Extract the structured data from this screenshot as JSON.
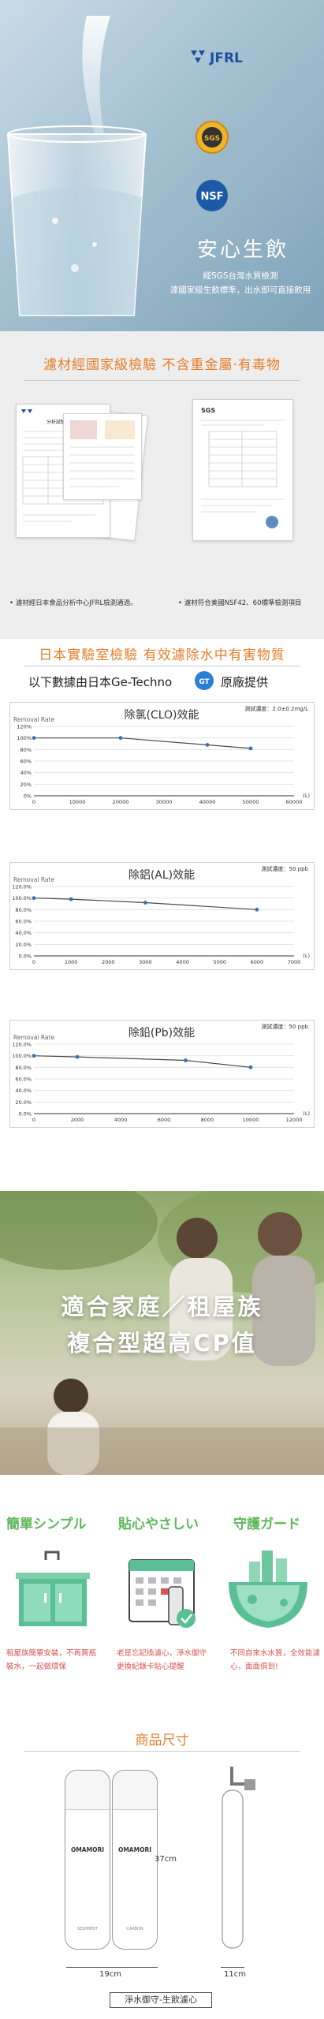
{
  "hero": {
    "brand_jfrl": "JFRL",
    "brand_sgs": "SGS",
    "brand_nsf": "NSF",
    "title": "安心生飲",
    "sub_line1": "經SGS台灣水質檢測",
    "sub_line2": "達國家級生飲標準，出水即可直接飲用"
  },
  "cert": {
    "title": "濾材經國家級檢驗  不含重金屬·有毒物",
    "doc_left_title": "分析試驗成績書",
    "doc_right_brand": "SGS",
    "note_left": "濾材經日本食品分析中心JFRL檢測通過。",
    "note_right": "濾材符合美國NSF42、60標準檢測項目"
  },
  "lab": {
    "title": "日本實驗室檢驗  有效濾除水中有害物質",
    "sub_prefix": "以下數據由日本Ge-Techno",
    "sub_suffix": "原廠提供",
    "logo_text": "GT"
  },
  "chart_data": [
    {
      "type": "line",
      "title": "除氯(CLO)效能",
      "ylabel": "Removal Rate",
      "note": "測試濃度：2.0±0.2mg/L",
      "x_unit": "(L)",
      "x_ticks": [
        "0",
        "10000",
        "20000",
        "30000",
        "40000",
        "50000",
        "60000"
      ],
      "y_ticks": [
        "120%",
        "100%",
        "80%",
        "60%",
        "40%",
        "20%",
        "0%"
      ],
      "xlim": [
        0,
        60000
      ],
      "ylim": [
        0,
        120
      ],
      "x": [
        0,
        20000,
        40000,
        50000
      ],
      "y": [
        100,
        100,
        88,
        82
      ]
    },
    {
      "type": "line",
      "title": "除鋁(AL)效能",
      "ylabel": "Removal Rate",
      "note": "測試濃度：50 ppb",
      "x_unit": "(L)",
      "x_ticks": [
        "0",
        "1000",
        "2000",
        "3000",
        "4000",
        "5000",
        "6000",
        "7000"
      ],
      "y_ticks": [
        "120.0%",
        "100.0%",
        "80.0%",
        "60.0%",
        "40.0%",
        "20.0%",
        "0.0%"
      ],
      "xlim": [
        0,
        7000
      ],
      "ylim": [
        0,
        120
      ],
      "x": [
        0,
        1000,
        3000,
        6000
      ],
      "y": [
        100,
        98,
        92,
        80
      ]
    },
    {
      "type": "line",
      "title": "除鉛(Pb)效能",
      "ylabel": "Removal Rate",
      "note": "測試濃度：50 ppb",
      "x_unit": "(L)",
      "x_ticks": [
        "0",
        "2000",
        "4000",
        "6000",
        "8000",
        "10000",
        "12000"
      ],
      "y_ticks": [
        "120.0%",
        "100.0%",
        "80.0%",
        "60.0%",
        "40.0%",
        "20.0%",
        "0.0%"
      ],
      "xlim": [
        0,
        12000
      ],
      "ylim": [
        0,
        120
      ],
      "x": [
        0,
        2000,
        7000,
        10000
      ],
      "y": [
        100,
        98,
        92,
        80
      ]
    }
  ],
  "family": {
    "line1": "適合家庭／租屋族",
    "line2": "複合型超高CP值"
  },
  "features": [
    {
      "title": "簡單シンプル",
      "desc": "租屋族簡單安裝，不再買瓶裝水，一起做環保"
    },
    {
      "title": "貼心やさしい",
      "desc": "老是忘記換濾心，淨水御守更換紀錄卡貼心提醒"
    },
    {
      "title": "守護ガード",
      "desc": "不同自來水水質，全效能濾心，面面俱到!"
    }
  ],
  "size": {
    "title": "商品尺寸",
    "brand": "OMAMORI",
    "label_left": "SEDIMENT",
    "label_right": "CARBON",
    "height": "37cm",
    "width_pair": "19cm",
    "width_single": "11cm",
    "footer": "淨水御守-生飲濾心"
  },
  "colors": {
    "orange": "#e57e2a",
    "green": "#5cb85c",
    "red": "#d9534f",
    "line": "#4a4a4a",
    "point": "#3a6fb0"
  }
}
